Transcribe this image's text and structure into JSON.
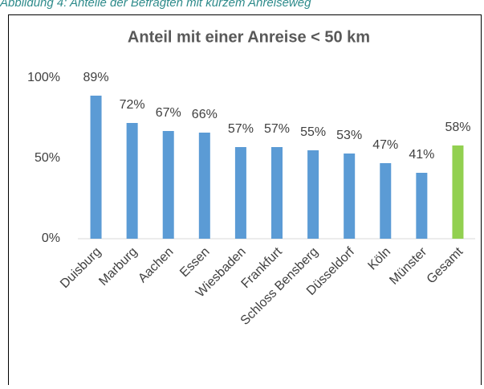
{
  "caption": "Abbildung 4: Anteile der Befragten mit kurzem Anreiseweg",
  "chart_data": {
    "type": "bar",
    "title": "Anteil mit einer Anreise < 50 km",
    "categories": [
      "Duisburg",
      "Marburg",
      "Aachen",
      "Essen",
      "Wiesbaden",
      "Frankfurt",
      "Schloss Bensberg",
      "Düsseldorf",
      "Köln",
      "Münster",
      "Gesamt"
    ],
    "values": [
      89,
      72,
      67,
      66,
      57,
      57,
      55,
      53,
      47,
      41,
      58
    ],
    "value_labels": [
      "89%",
      "72%",
      "67%",
      "66%",
      "57%",
      "57%",
      "55%",
      "53%",
      "47%",
      "41%",
      "58%"
    ],
    "colors": [
      "#5b9bd5",
      "#5b9bd5",
      "#5b9bd5",
      "#5b9bd5",
      "#5b9bd5",
      "#5b9bd5",
      "#5b9bd5",
      "#5b9bd5",
      "#5b9bd5",
      "#5b9bd5",
      "#92d050"
    ],
    "ylim": [
      0,
      100
    ],
    "yticks": [
      {
        "value": 0,
        "label": "0%"
      },
      {
        "value": 50,
        "label": "50%"
      },
      {
        "value": 100,
        "label": "100%"
      }
    ],
    "grid": false
  }
}
